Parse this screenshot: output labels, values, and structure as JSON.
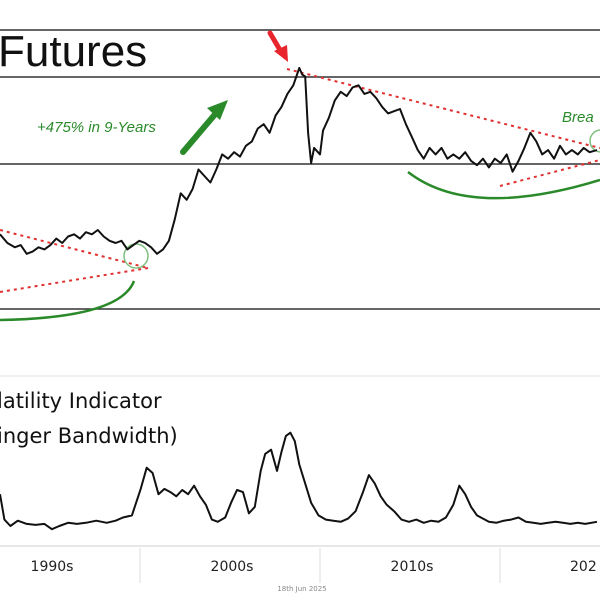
{
  "colors": {
    "line": "#111111",
    "guide": "#333333",
    "trend": "#e03030",
    "annotation": "#2a8a2a",
    "arrow_red": "#e8242c",
    "grid": "#d8d8d8"
  },
  "chart_data": [
    {
      "type": "line",
      "title": "Futures",
      "xlabel": "",
      "ylabel": "",
      "x_tick_labels": [
        "1990s",
        "2000s",
        "2010s",
        "202"
      ],
      "xlim": [
        1985,
        2025.5
      ],
      "ylim": [
        0,
        1
      ],
      "y_scale": "unlabeled relative price level",
      "grid": false,
      "annotations": {
        "gain": "+475% in 9-Years",
        "breakout": "Brea"
      },
      "series": [
        {
          "values": [
            [
              1985.0,
              0.23
            ],
            [
              1985.5,
              0.19
            ],
            [
              1986.0,
              0.17
            ],
            [
              1986.4,
              0.18
            ],
            [
              1986.8,
              0.14
            ],
            [
              1987.2,
              0.15
            ],
            [
              1987.6,
              0.17
            ],
            [
              1988.0,
              0.16
            ],
            [
              1988.4,
              0.18
            ],
            [
              1988.8,
              0.21
            ],
            [
              1989.2,
              0.19
            ],
            [
              1989.6,
              0.22
            ],
            [
              1990.0,
              0.23
            ],
            [
              1990.4,
              0.21
            ],
            [
              1990.8,
              0.24
            ],
            [
              1991.2,
              0.23
            ],
            [
              1991.6,
              0.25
            ],
            [
              1992.0,
              0.22
            ],
            [
              1992.4,
              0.2
            ],
            [
              1992.8,
              0.19
            ],
            [
              1993.2,
              0.2
            ],
            [
              1993.6,
              0.16
            ],
            [
              1994.0,
              0.18
            ],
            [
              1994.4,
              0.2
            ],
            [
              1994.8,
              0.19
            ],
            [
              1995.2,
              0.17
            ],
            [
              1995.6,
              0.14
            ],
            [
              1996.0,
              0.16
            ],
            [
              1996.4,
              0.2
            ],
            [
              1996.8,
              0.3
            ],
            [
              1997.2,
              0.42
            ],
            [
              1997.6,
              0.39
            ],
            [
              1998.0,
              0.44
            ],
            [
              1998.4,
              0.53
            ],
            [
              1998.8,
              0.5
            ],
            [
              1999.2,
              0.47
            ],
            [
              1999.6,
              0.53
            ],
            [
              2000.0,
              0.6
            ],
            [
              2000.4,
              0.58
            ],
            [
              2000.8,
              0.61
            ],
            [
              2001.2,
              0.59
            ],
            [
              2001.6,
              0.64
            ],
            [
              2002.0,
              0.66
            ],
            [
              2002.4,
              0.72
            ],
            [
              2002.8,
              0.74
            ],
            [
              2003.2,
              0.7
            ],
            [
              2003.6,
              0.78
            ],
            [
              2004.0,
              0.82
            ],
            [
              2004.4,
              0.88
            ],
            [
              2004.8,
              0.92
            ],
            [
              2005.2,
              1.0
            ],
            [
              2005.4,
              0.97
            ],
            [
              2005.6,
              0.96
            ],
            [
              2005.8,
              0.7
            ],
            [
              2006.0,
              0.56
            ],
            [
              2006.2,
              0.63
            ],
            [
              2006.6,
              0.6
            ],
            [
              2006.8,
              0.71
            ],
            [
              2007.2,
              0.77
            ],
            [
              2007.6,
              0.85
            ],
            [
              2008.0,
              0.89
            ],
            [
              2008.4,
              0.87
            ],
            [
              2008.8,
              0.91
            ],
            [
              2009.2,
              0.92
            ],
            [
              2009.6,
              0.88
            ],
            [
              2010.0,
              0.89
            ],
            [
              2010.4,
              0.86
            ],
            [
              2010.8,
              0.82
            ],
            [
              2011.2,
              0.79
            ],
            [
              2011.6,
              0.8
            ],
            [
              2012.0,
              0.81
            ],
            [
              2012.4,
              0.74
            ],
            [
              2012.8,
              0.68
            ],
            [
              2013.2,
              0.62
            ],
            [
              2013.6,
              0.58
            ],
            [
              2014.0,
              0.63
            ],
            [
              2014.4,
              0.6
            ],
            [
              2014.8,
              0.63
            ],
            [
              2015.2,
              0.58
            ],
            [
              2015.6,
              0.6
            ],
            [
              2016.0,
              0.58
            ],
            [
              2016.4,
              0.61
            ],
            [
              2016.8,
              0.57
            ],
            [
              2017.2,
              0.55
            ],
            [
              2017.6,
              0.58
            ],
            [
              2018.0,
              0.54
            ],
            [
              2018.4,
              0.58
            ],
            [
              2018.8,
              0.56
            ],
            [
              2019.2,
              0.6
            ],
            [
              2019.6,
              0.52
            ],
            [
              2020.0,
              0.57
            ],
            [
              2020.4,
              0.63
            ],
            [
              2020.8,
              0.7
            ],
            [
              2021.2,
              0.66
            ],
            [
              2021.6,
              0.6
            ],
            [
              2022.0,
              0.62
            ],
            [
              2022.4,
              0.58
            ],
            [
              2022.8,
              0.64
            ],
            [
              2023.2,
              0.6
            ],
            [
              2023.6,
              0.62
            ],
            [
              2024.0,
              0.6
            ],
            [
              2024.4,
              0.63
            ],
            [
              2024.8,
              0.61
            ],
            [
              2025.3,
              0.62
            ]
          ]
        }
      ]
    },
    {
      "type": "line",
      "title": "latility Indicator",
      "subtitle": "inger Bandwidth)",
      "xlabel": "",
      "ylabel": "",
      "x_tick_labels": [
        "1990s",
        "2000s",
        "2010s",
        "202"
      ],
      "xlim": [
        1985,
        2025.5
      ],
      "ylim": [
        0,
        1
      ],
      "y_scale": "unlabeled relative bandwidth",
      "grid": false,
      "series": [
        {
          "values": [
            [
              1985.0,
              0.3
            ],
            [
              1985.3,
              0.06
            ],
            [
              1985.7,
              0.0
            ],
            [
              1986.2,
              0.05
            ],
            [
              1986.8,
              0.02
            ],
            [
              1987.4,
              0.01
            ],
            [
              1988.0,
              0.02
            ],
            [
              1988.5,
              -0.03
            ],
            [
              1989.0,
              0.0
            ],
            [
              1989.6,
              0.03
            ],
            [
              1990.2,
              0.02
            ],
            [
              1990.8,
              0.03
            ],
            [
              1991.5,
              0.05
            ],
            [
              1992.2,
              0.03
            ],
            [
              1992.8,
              0.05
            ],
            [
              1993.3,
              0.08
            ],
            [
              1993.9,
              0.1
            ],
            [
              1994.5,
              0.35
            ],
            [
              1994.9,
              0.55
            ],
            [
              1995.3,
              0.5
            ],
            [
              1995.7,
              0.3
            ],
            [
              1996.1,
              0.35
            ],
            [
              1996.5,
              0.32
            ],
            [
              1996.9,
              0.28
            ],
            [
              1997.3,
              0.34
            ],
            [
              1997.7,
              0.3
            ],
            [
              1998.1,
              0.38
            ],
            [
              1998.5,
              0.28
            ],
            [
              1998.9,
              0.2
            ],
            [
              1999.3,
              0.06
            ],
            [
              1999.7,
              0.04
            ],
            [
              2000.2,
              0.08
            ],
            [
              2000.6,
              0.22
            ],
            [
              2001.0,
              0.34
            ],
            [
              2001.4,
              0.32
            ],
            [
              2001.8,
              0.12
            ],
            [
              2002.2,
              0.18
            ],
            [
              2002.6,
              0.52
            ],
            [
              2002.9,
              0.68
            ],
            [
              2003.3,
              0.72
            ],
            [
              2003.7,
              0.52
            ],
            [
              2004.0,
              0.7
            ],
            [
              2004.3,
              0.85
            ],
            [
              2004.6,
              0.88
            ],
            [
              2004.9,
              0.8
            ],
            [
              2005.2,
              0.58
            ],
            [
              2005.6,
              0.4
            ],
            [
              2006.0,
              0.22
            ],
            [
              2006.5,
              0.1
            ],
            [
              2007.0,
              0.06
            ],
            [
              2007.5,
              0.05
            ],
            [
              2008.0,
              0.04
            ],
            [
              2008.5,
              0.07
            ],
            [
              2009.0,
              0.14
            ],
            [
              2009.5,
              0.32
            ],
            [
              2009.9,
              0.48
            ],
            [
              2010.3,
              0.4
            ],
            [
              2010.7,
              0.28
            ],
            [
              2011.1,
              0.2
            ],
            [
              2011.6,
              0.14
            ],
            [
              2012.1,
              0.06
            ],
            [
              2012.6,
              0.04
            ],
            [
              2013.1,
              0.06
            ],
            [
              2013.6,
              0.03
            ],
            [
              2014.1,
              0.05
            ],
            [
              2014.6,
              0.04
            ],
            [
              2015.1,
              0.08
            ],
            [
              2015.6,
              0.2
            ],
            [
              2016.0,
              0.38
            ],
            [
              2016.4,
              0.3
            ],
            [
              2016.8,
              0.18
            ],
            [
              2017.2,
              0.1
            ],
            [
              2017.6,
              0.07
            ],
            [
              2018.0,
              0.04
            ],
            [
              2018.5,
              0.03
            ],
            [
              2019.0,
              0.05
            ],
            [
              2019.5,
              0.06
            ],
            [
              2020.0,
              0.08
            ],
            [
              2020.5,
              0.04
            ],
            [
              2021.0,
              0.03
            ],
            [
              2021.5,
              0.02
            ],
            [
              2022.0,
              0.03
            ],
            [
              2022.5,
              0.04
            ],
            [
              2023.0,
              0.03
            ],
            [
              2023.5,
              0.02
            ],
            [
              2024.0,
              0.03
            ],
            [
              2024.5,
              0.02
            ],
            [
              2025.3,
              0.04
            ]
          ]
        }
      ]
    }
  ],
  "credit": "18th Jun 2025"
}
